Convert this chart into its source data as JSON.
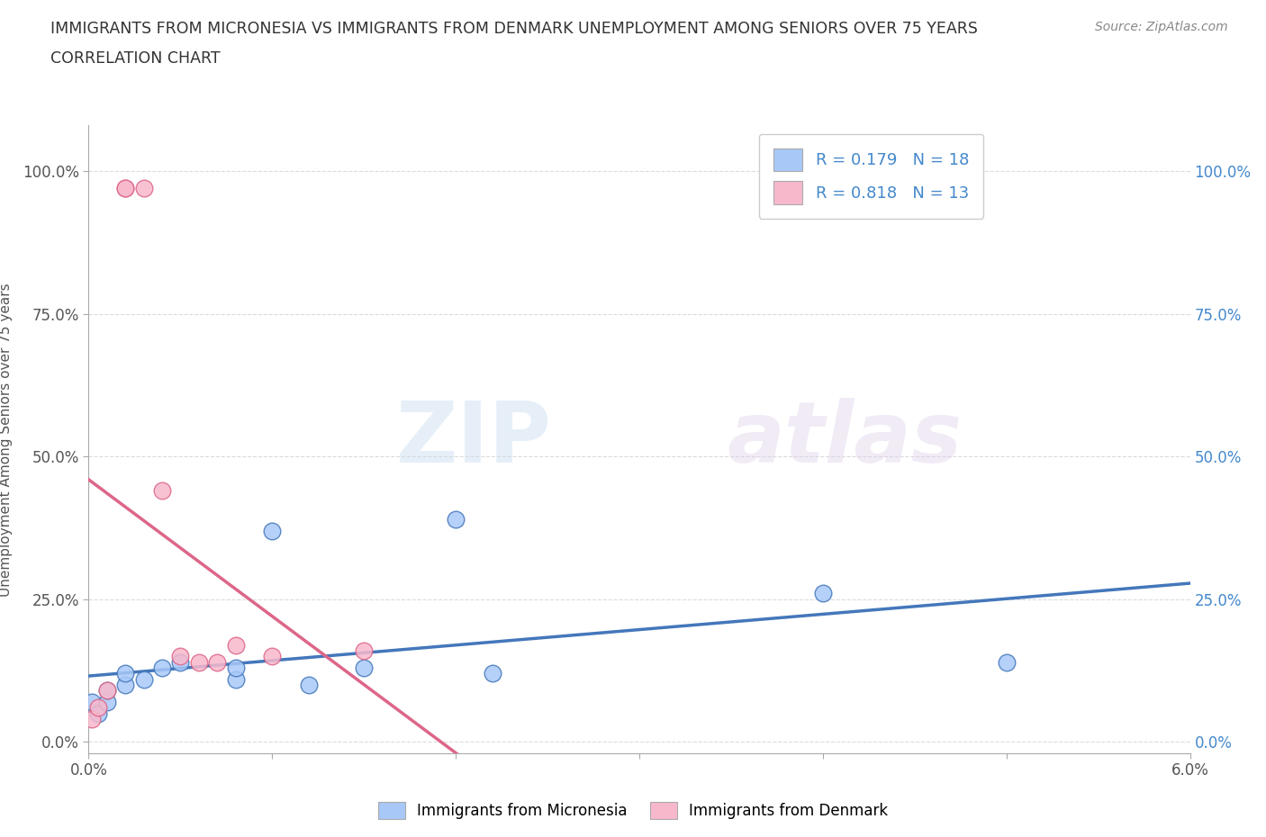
{
  "title_line1": "IMMIGRANTS FROM MICRONESIA VS IMMIGRANTS FROM DENMARK UNEMPLOYMENT AMONG SENIORS OVER 75 YEARS",
  "title_line2": "CORRELATION CHART",
  "source": "Source: ZipAtlas.com",
  "ylabel": "Unemployment Among Seniors over 75 years",
  "xlim": [
    0.0,
    0.06
  ],
  "ylim": [
    -0.02,
    1.08
  ],
  "xticks": [
    0.0,
    0.01,
    0.02,
    0.03,
    0.04,
    0.05,
    0.06
  ],
  "xticklabels": [
    "0.0%",
    "",
    "",
    "",
    "",
    "",
    "6.0%"
  ],
  "yticks": [
    0.0,
    0.25,
    0.5,
    0.75,
    1.0
  ],
  "yticklabels": [
    "0.0%",
    "25.0%",
    "50.0%",
    "75.0%",
    "100.0%"
  ],
  "micronesia_x": [
    0.0002,
    0.0005,
    0.001,
    0.001,
    0.002,
    0.002,
    0.003,
    0.004,
    0.005,
    0.008,
    0.008,
    0.01,
    0.012,
    0.015,
    0.02,
    0.022,
    0.04,
    0.05
  ],
  "micronesia_y": [
    0.07,
    0.05,
    0.07,
    0.09,
    0.1,
    0.12,
    0.11,
    0.13,
    0.14,
    0.11,
    0.13,
    0.37,
    0.1,
    0.13,
    0.39,
    0.12,
    0.26,
    0.14
  ],
  "denmark_x": [
    0.0002,
    0.0005,
    0.001,
    0.002,
    0.002,
    0.003,
    0.004,
    0.005,
    0.006,
    0.007,
    0.008,
    0.01,
    0.015
  ],
  "denmark_y": [
    0.04,
    0.06,
    0.09,
    0.97,
    0.97,
    0.97,
    0.44,
    0.15,
    0.14,
    0.14,
    0.17,
    0.15,
    0.16
  ],
  "micronesia_color": "#a8c8f8",
  "denmark_color": "#f8b8cc",
  "micronesia_line_color": "#4477bb",
  "denmark_line_color": "#dd6688",
  "R_micronesia": 0.179,
  "N_micronesia": 18,
  "R_denmark": 0.818,
  "N_denmark": 13,
  "legend_box_color_micronesia": "#a8c8f8",
  "legend_box_color_denmark": "#f8b8cc",
  "watermark_zip": "ZIP",
  "watermark_atlas": "atlas",
  "background_color": "#ffffff",
  "grid_color": "#cccccc",
  "right_tick_color": "#4488cc"
}
